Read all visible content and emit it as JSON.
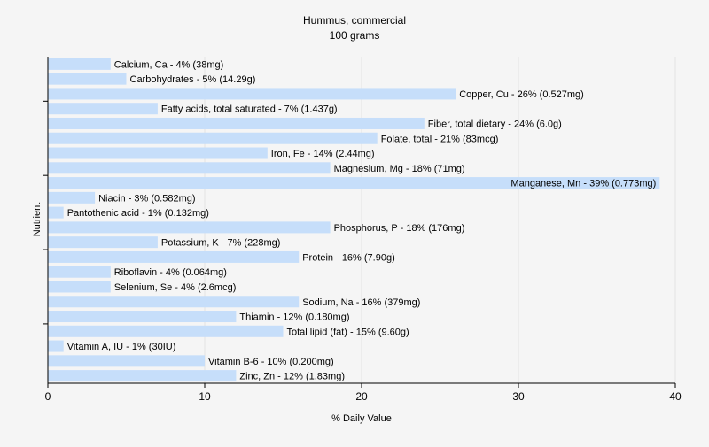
{
  "chart_data": {
    "type": "bar",
    "orientation": "horizontal",
    "title": "Hummus, commercial",
    "subtitle": "100 grams",
    "xlabel": "% Daily Value",
    "ylabel": "Nutrient",
    "xlim": [
      0,
      40
    ],
    "xticks": [
      0,
      10,
      20,
      30,
      40
    ],
    "grid": true,
    "bar_color": "#c6defa",
    "gridline_color": "#e2e2e2",
    "categories": [
      "Calcium, Ca",
      "Carbohydrates",
      "Copper, Cu",
      "Fatty acids, total saturated",
      "Fiber, total dietary",
      "Folate, total",
      "Iron, Fe",
      "Magnesium, Mg",
      "Manganese, Mn",
      "Niacin",
      "Pantothenic acid",
      "Phosphorus, P",
      "Potassium, K",
      "Protein",
      "Riboflavin",
      "Selenium, Se",
      "Sodium, Na",
      "Thiamin",
      "Total lipid (fat)",
      "Vitamin A, IU",
      "Vitamin B-6",
      "Zinc, Zn"
    ],
    "values": [
      4,
      5,
      26,
      7,
      24,
      21,
      14,
      18,
      39,
      3,
      1,
      18,
      7,
      16,
      4,
      4,
      16,
      12,
      15,
      1,
      10,
      12
    ],
    "data_labels": [
      "Calcium, Ca - 4% (38mg)",
      "Carbohydrates - 5% (14.29g)",
      "Copper, Cu - 26% (0.527mg)",
      "Fatty acids, total saturated - 7% (1.437g)",
      "Fiber, total dietary - 24% (6.0g)",
      "Folate, total - 21% (83mcg)",
      "Iron, Fe - 14% (2.44mg)",
      "Magnesium, Mg - 18% (71mg)",
      "Manganese, Mn - 39% (0.773mg)",
      "Niacin - 3% (0.582mg)",
      "Pantothenic acid - 1% (0.132mg)",
      "Phosphorus, P - 18% (176mg)",
      "Potassium, K - 7% (228mg)",
      "Protein - 16% (7.90g)",
      "Riboflavin - 4% (0.064mg)",
      "Selenium, Se - 4% (2.6mcg)",
      "Sodium, Na - 16% (379mg)",
      "Thiamin - 12% (0.180mg)",
      "Total lipid (fat) - 15% (9.60g)",
      "Vitamin A, IU - 1% (30IU)",
      "Vitamin B-6 - 10% (0.200mg)",
      "Zinc, Zn - 12% (1.83mg)"
    ]
  }
}
